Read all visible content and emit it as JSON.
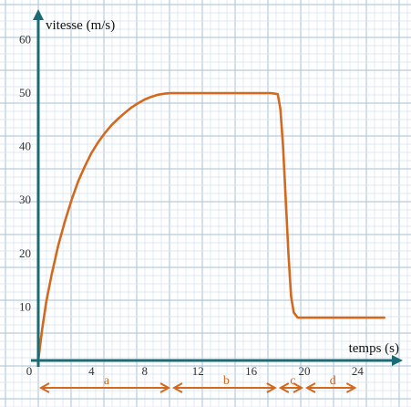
{
  "chart_data": {
    "type": "line",
    "ylabel": "vitesse (m/s)",
    "xlabel": "temps (s)",
    "xlim": [
      0,
      27
    ],
    "ylim": [
      0,
      62
    ],
    "grid": true,
    "x_ticks": [
      0,
      4,
      8,
      12,
      16,
      20,
      24
    ],
    "y_ticks": [
      10,
      20,
      30,
      40,
      50,
      60
    ],
    "series": [
      {
        "x": [
          0,
          0.3,
          0.6,
          1,
          1.5,
          2,
          2.5,
          3,
          3.5,
          4,
          4.5,
          5,
          5.5,
          6,
          6.5,
          7,
          7.5,
          8,
          8.5,
          9,
          9.5,
          10,
          10.5,
          11,
          12,
          14,
          16,
          17.5,
          18,
          18.2,
          18.4,
          18.6,
          18.8,
          19,
          19.2,
          19.5,
          20,
          21,
          22,
          24,
          26
        ],
        "y": [
          0,
          6,
          11,
          16,
          21.5,
          26,
          30,
          33.5,
          36.3,
          38.8,
          40.8,
          42.5,
          44,
          45.2,
          46.3,
          47.3,
          48.1,
          48.8,
          49.3,
          49.7,
          49.9,
          50,
          50,
          50,
          50,
          50,
          50,
          50,
          49.8,
          47,
          40,
          30,
          20,
          12,
          9,
          8,
          8,
          8,
          8,
          8,
          8
        ],
        "color": "#D2691E"
      }
    ],
    "phases": [
      {
        "label": "a",
        "start": 0,
        "end": 10
      },
      {
        "label": "b",
        "start": 10,
        "end": 18
      },
      {
        "label": "c",
        "start": 18,
        "end": 20
      },
      {
        "label": "d",
        "start": 20,
        "end": 24
      }
    ]
  },
  "colors": {
    "axis": "#1a6b73",
    "curve": "#D2691E",
    "arrows": "#D2691E",
    "grid_major": "#a9c1d3",
    "grid_minor": "#d6e3ee"
  }
}
